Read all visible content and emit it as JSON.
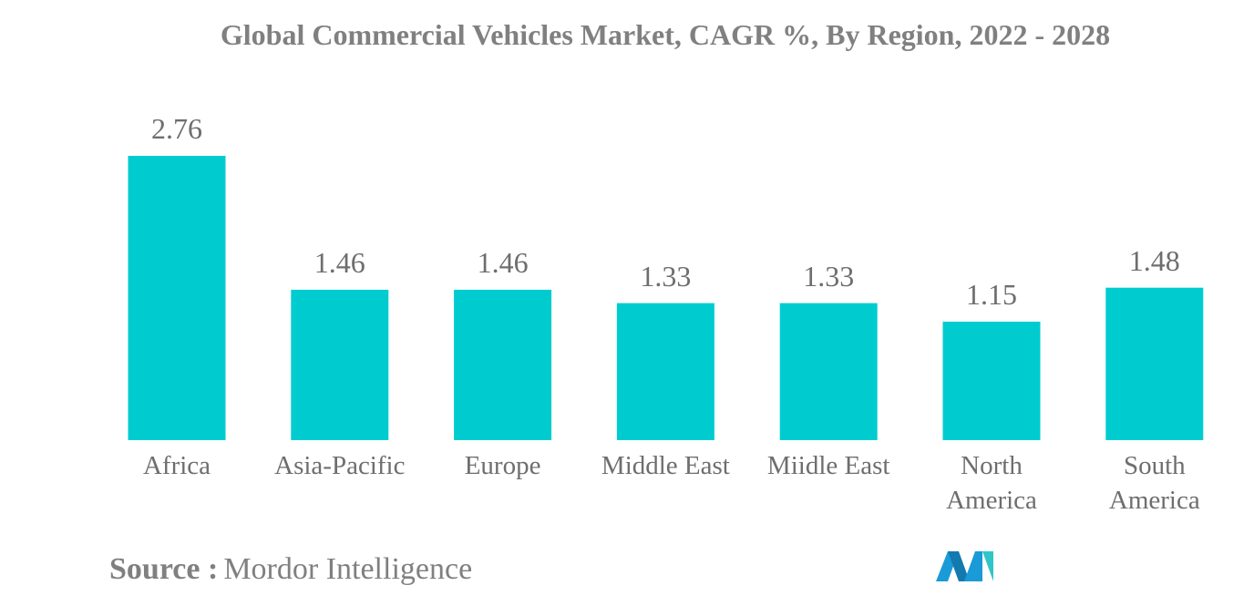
{
  "chart_data": {
    "type": "bar",
    "title": "Global Commercial Vehicles Market, CAGR %, By Region, 2022 - 2028",
    "categories": [
      "Africa",
      "Asia-Pacific",
      "Europe",
      "Middle East",
      "Miidle East",
      "North America",
      "South America"
    ],
    "values": [
      2.76,
      1.46,
      1.46,
      1.33,
      1.33,
      1.15,
      1.48
    ],
    "color": "#00cccf",
    "source_label": "Source :",
    "source": "Mordor Intelligence"
  }
}
